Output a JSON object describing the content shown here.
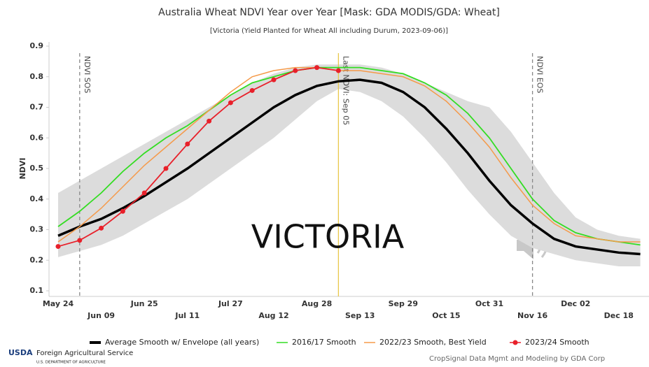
{
  "chart_data": {
    "type": "line",
    "title": "Australia Wheat NDVI Year over Year [Mask: GDA MODIS/GDA: Wheat]",
    "subtitle": "[Victoria (Yield Planted for Wheat All including Durum, 2023-09-06)]",
    "y_label": "NDVI",
    "overlay_text": "VICTORIA",
    "categories": [
      "May 24",
      null,
      "Jun 09",
      null,
      "Jun 25",
      null,
      "Jul 11",
      null,
      "Jul 27",
      null,
      "Aug 12",
      null,
      "Aug 28",
      null,
      "Sep 13",
      null,
      "Sep 29",
      null,
      "Oct 15",
      null,
      "Oct 31",
      null,
      "Nov 16",
      null,
      "Dec 02",
      null,
      "Dec 18",
      null
    ],
    "ylim": [
      0.1,
      0.9
    ],
    "yticks": [
      0.1,
      0.2,
      0.3,
      0.4,
      0.5,
      0.6,
      0.7,
      0.8,
      0.9
    ],
    "grid": false,
    "envelope": {
      "color": "#dcdcdc",
      "upper": [
        0.42,
        0.46,
        0.5,
        0.54,
        0.58,
        0.62,
        0.66,
        0.7,
        0.74,
        0.78,
        0.81,
        0.83,
        0.84,
        0.84,
        0.84,
        0.83,
        0.81,
        0.78,
        0.75,
        0.72,
        0.7,
        0.62,
        0.52,
        0.42,
        0.34,
        0.3,
        0.28,
        0.27
      ],
      "lower": [
        0.21,
        0.23,
        0.25,
        0.28,
        0.32,
        0.36,
        0.4,
        0.45,
        0.5,
        0.55,
        0.6,
        0.66,
        0.72,
        0.76,
        0.75,
        0.72,
        0.67,
        0.6,
        0.52,
        0.43,
        0.35,
        0.28,
        0.24,
        0.22,
        0.2,
        0.19,
        0.18,
        0.18
      ]
    },
    "series": [
      {
        "name": "Average Smooth w/ Envelope (all years)",
        "color": "#000000",
        "width": 3.5,
        "markers": false,
        "values": [
          0.28,
          0.31,
          0.335,
          0.37,
          0.41,
          0.455,
          0.5,
          0.55,
          0.6,
          0.65,
          0.7,
          0.74,
          0.77,
          0.785,
          0.79,
          0.78,
          0.75,
          0.7,
          0.63,
          0.55,
          0.46,
          0.38,
          0.32,
          0.27,
          0.245,
          0.235,
          0.225,
          0.22
        ]
      },
      {
        "name": "2016/17 Smooth",
        "color": "#33dd22",
        "width": 1.8,
        "markers": false,
        "values": [
          0.31,
          0.36,
          0.42,
          0.49,
          0.55,
          0.6,
          0.64,
          0.69,
          0.74,
          0.78,
          0.8,
          0.82,
          0.83,
          0.83,
          0.83,
          0.82,
          0.81,
          0.78,
          0.74,
          0.68,
          0.6,
          0.5,
          0.4,
          0.33,
          0.29,
          0.27,
          0.26,
          0.25
        ]
      },
      {
        "name": "2022/23 Smooth, Best Yield",
        "color": "#f59a4a",
        "width": 1.5,
        "markers": false,
        "values": [
          0.26,
          0.31,
          0.37,
          0.44,
          0.51,
          0.57,
          0.63,
          0.69,
          0.75,
          0.8,
          0.82,
          0.83,
          0.83,
          0.82,
          0.82,
          0.81,
          0.8,
          0.77,
          0.72,
          0.65,
          0.57,
          0.47,
          0.38,
          0.32,
          0.28,
          0.27,
          0.26,
          0.26
        ]
      },
      {
        "name": "2023/24 Smooth",
        "color": "#e8202a",
        "width": 1.8,
        "markers": true,
        "values": [
          0.245,
          0.265,
          0.305,
          0.36,
          0.42,
          0.5,
          0.58,
          0.655,
          0.715,
          0.755,
          0.79,
          0.82,
          0.83,
          0.82,
          null,
          null,
          null,
          null,
          null,
          null,
          null,
          null,
          null,
          null,
          null,
          null,
          null,
          null
        ]
      }
    ],
    "vlines": [
      {
        "label": "NDVI SOS",
        "index": 1,
        "color": "#888888",
        "dashed": true
      },
      {
        "label": "Last NDVI: Sep 05",
        "index": 13,
        "color": "#e8c84a",
        "dashed": false
      },
      {
        "label": "NDVI EOS",
        "index": 22,
        "color": "#888888",
        "dashed": true
      }
    ]
  },
  "footer": {
    "logo": "USDA",
    "agency": "Foreign Agricultural Service",
    "department": "U.S. DEPARTMENT OF AGRICULTURE",
    "credit": "CropSignal Data Mgmt and Modeling by GDA Corp"
  }
}
